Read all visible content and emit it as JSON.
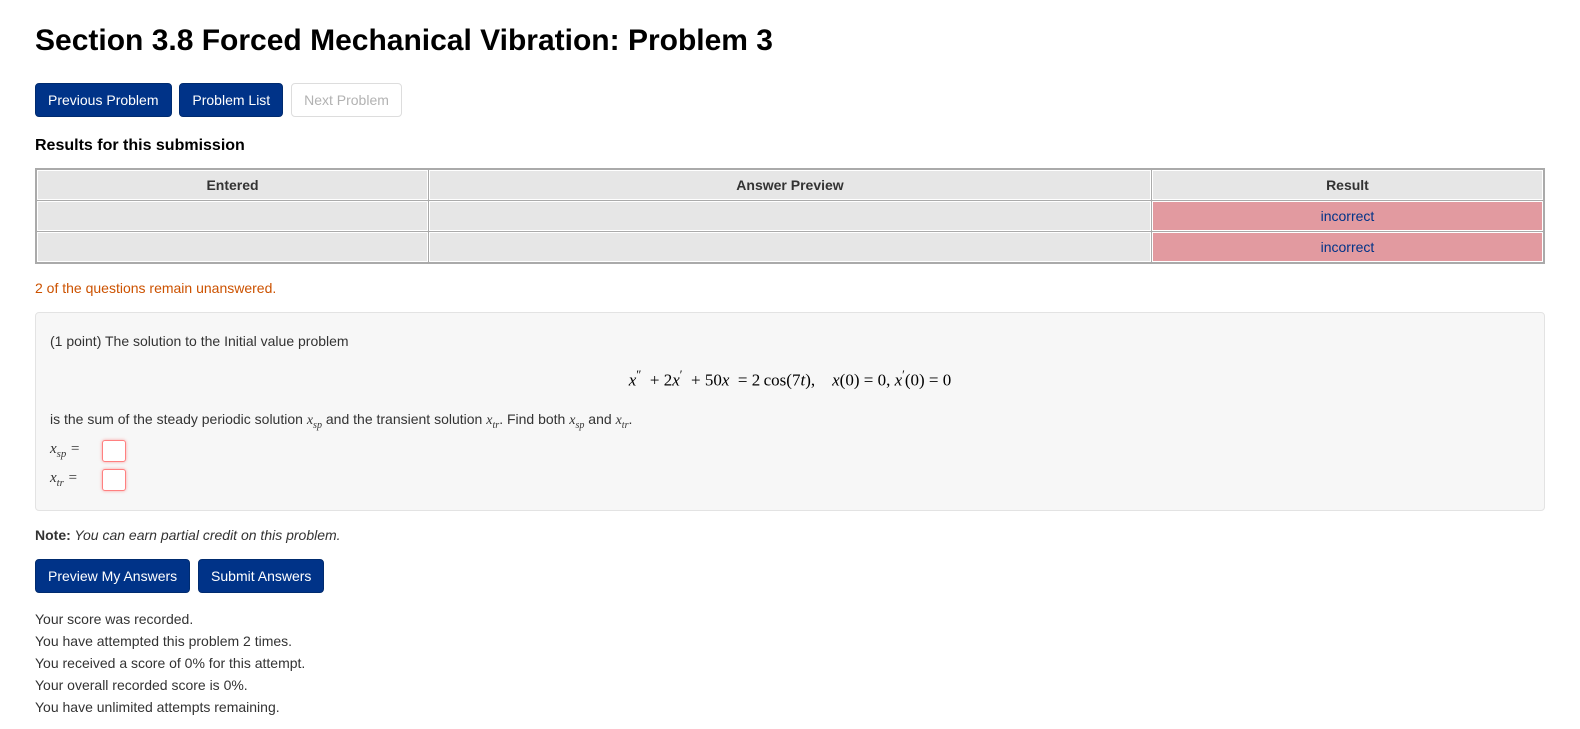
{
  "title": "Section 3.8 Forced Mechanical Vibration: Problem 3",
  "nav": {
    "prev": "Previous Problem",
    "list": "Problem List",
    "next": "Next Problem"
  },
  "results": {
    "heading": "Results for this submission",
    "columns": [
      "Entered",
      "Answer Preview",
      "Result"
    ],
    "rows": [
      {
        "entered": "",
        "preview": "",
        "result": "incorrect",
        "result_status": "incorrect"
      },
      {
        "entered": "",
        "preview": "",
        "result": "incorrect",
        "result_status": "incorrect"
      }
    ],
    "colors": {
      "header_bg": "#e6e6e6",
      "cell_bg": "#e6e6e6",
      "incorrect_bg": "#e29aa0",
      "incorrect_text": "#003388",
      "border": "#aaaaaa"
    }
  },
  "unanswered_msg": "2 of the questions remain unanswered.",
  "problem": {
    "intro": "(1 point) The solution to the Initial value problem",
    "equation": "x″ + 2x′ + 50x = 2 cos(7t),    x(0) = 0, x′(0) = 0",
    "between_text_parts": {
      "p1": "is the sum of the steady periodic solution ",
      "p2": " and the transient solution ",
      "p3": ". Find both ",
      "p4": " and ",
      "p5": "."
    },
    "answers": [
      {
        "label_var": "x",
        "label_sub": "sp",
        "value": ""
      },
      {
        "label_var": "x",
        "label_sub": "tr",
        "value": ""
      }
    ]
  },
  "note": {
    "lead": "Note:",
    "body": " You can earn partial credit on this problem."
  },
  "buttons": {
    "preview": "Preview My Answers",
    "submit": "Submit Answers"
  },
  "status": [
    "Your score was recorded.",
    "You have attempted this problem 2 times.",
    "You received a score of 0% for this attempt.",
    "Your overall recorded score is 0%.",
    "You have unlimited attempts remaining."
  ],
  "style": {
    "primary_btn_bg": "#003388",
    "primary_btn_text": "#ffffff",
    "unanswered_color": "#cc5200",
    "problem_bg": "#f7f7f7",
    "problem_border": "#e3e3e3"
  }
}
